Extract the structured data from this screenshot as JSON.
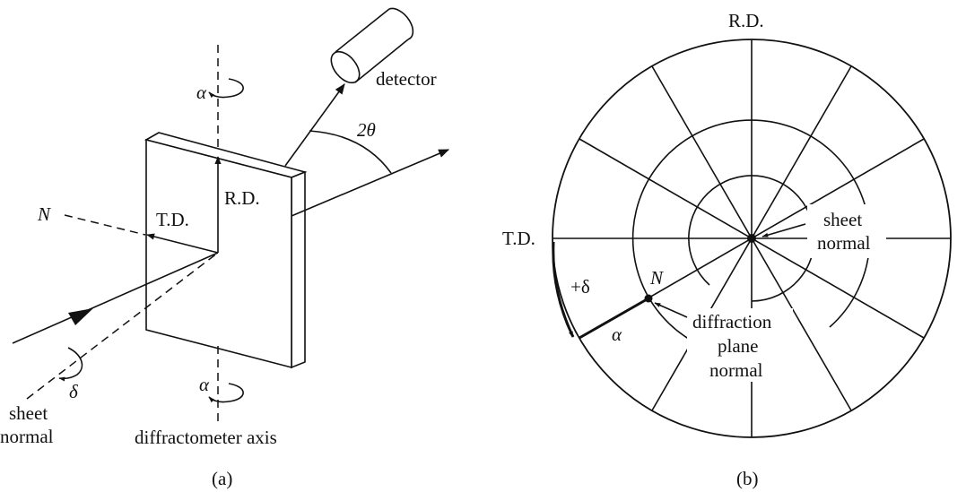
{
  "panel_a": {
    "caption": "(a)",
    "labels": {
      "alpha_top": "α",
      "alpha_bottom": "α",
      "detector": "detector",
      "two_theta": "2θ",
      "rd": "R.D.",
      "td": "T.D.",
      "n": "N",
      "delta": "δ",
      "sheet": "sheet",
      "normal": "normal",
      "axis": "diffractometer axis"
    }
  },
  "panel_b": {
    "caption": "(b)",
    "labels": {
      "rd": "R.D.",
      "td": "T.D.",
      "plus_delta": "+δ",
      "n": "N",
      "alpha": "α",
      "sheet": "sheet",
      "normal": "normal",
      "diffraction": "diffraction",
      "plane": "plane",
      "plane_normal": "normal"
    }
  }
}
